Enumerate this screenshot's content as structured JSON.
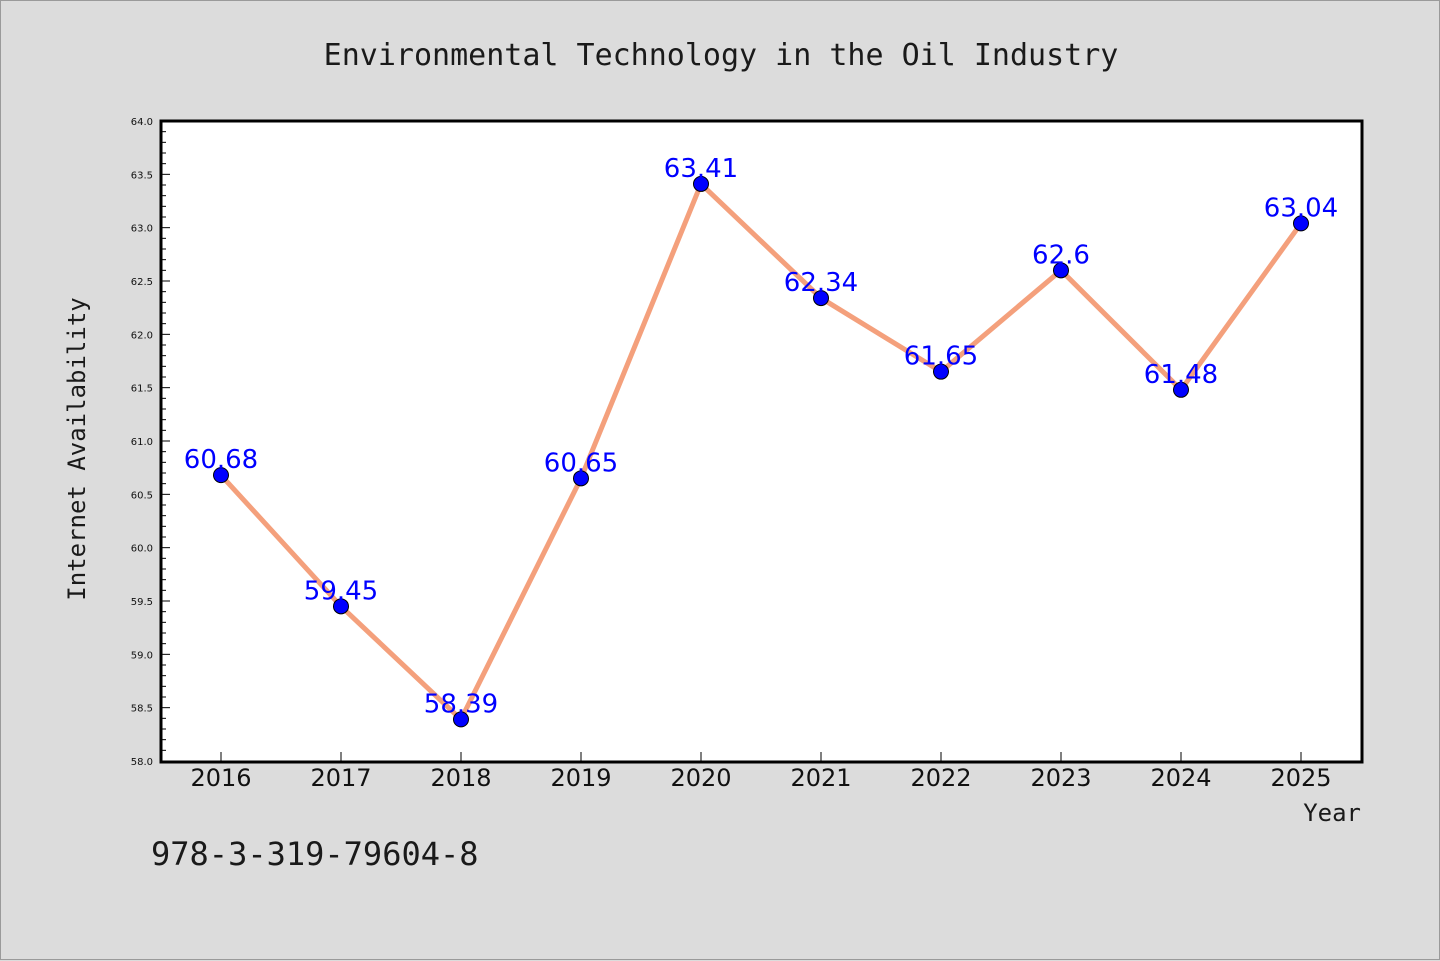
{
  "chart_data": {
    "type": "line",
    "title": "Environmental Technology in the Oil Industry",
    "xlabel": "Year",
    "ylabel": "Internet Availability",
    "categories": [
      "2016",
      "2017",
      "2018",
      "2019",
      "2020",
      "2021",
      "2022",
      "2023",
      "2024",
      "2025"
    ],
    "series": [
      {
        "values": [
          60.68,
          59.45,
          58.39,
          60.65,
          63.41,
          62.34,
          61.65,
          62.6,
          61.48,
          63.04
        ],
        "labels": [
          "60.68",
          "59.45",
          "58.39",
          "60.65",
          "63.41",
          "62.34",
          "61.65",
          "62.6",
          "61.48",
          "63.04"
        ],
        "line_color": "#f4a07c",
        "marker_color": "#0000ff"
      }
    ],
    "ylim": [
      58.0,
      64.0
    ],
    "yticks": [
      "58.0",
      "58.5",
      "59.0",
      "59.5",
      "60.0",
      "60.5",
      "61.0",
      "61.5",
      "62.0",
      "62.5",
      "63.0",
      "63.5",
      "64.0"
    ],
    "grid": false,
    "label_color": "#0000ff"
  },
  "footer": {
    "isbn": "978-3-319-79604-8"
  }
}
